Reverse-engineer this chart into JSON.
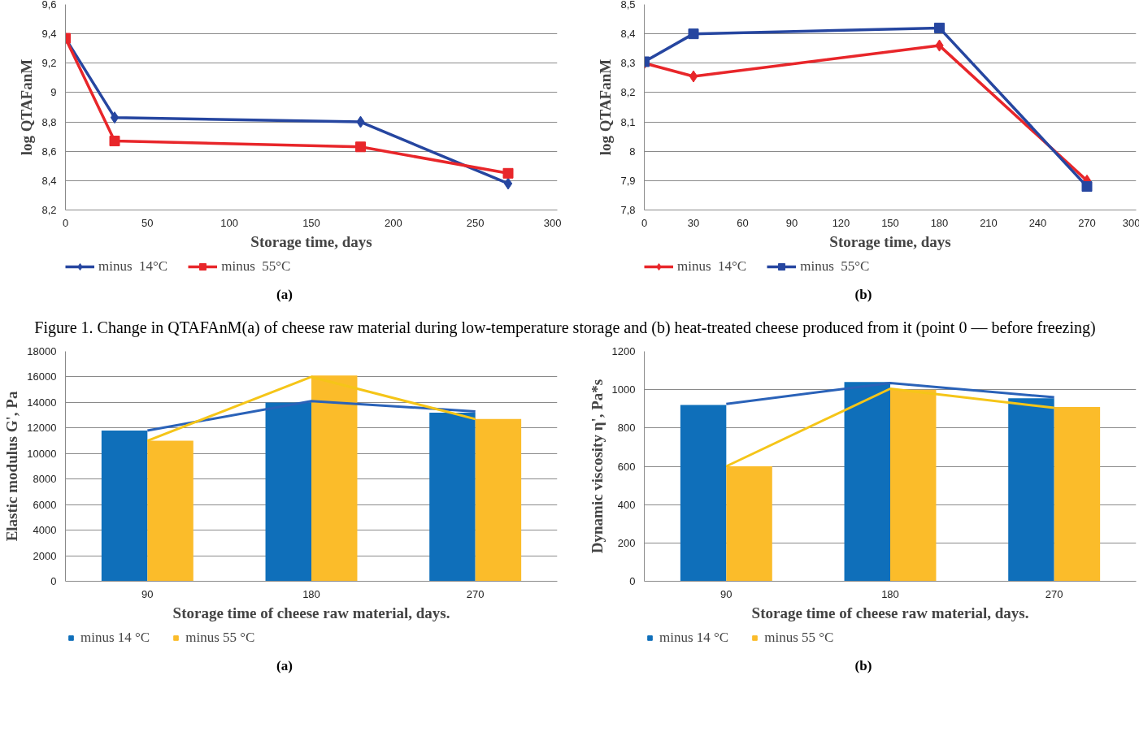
{
  "chart_data": [
    {
      "type": "line",
      "ylabel": "log QTAFanM",
      "xlabel": "Storage time, days",
      "x": [
        0,
        30,
        180,
        270
      ],
      "series": [
        {
          "name": "minus  14°C",
          "color": "#2646a0",
          "marker": "diamond",
          "values": [
            9.37,
            8.83,
            8.8,
            8.38
          ]
        },
        {
          "name": "minus  55°C",
          "color": "#e8262a",
          "marker": "square",
          "values": [
            9.37,
            8.67,
            8.63,
            8.45
          ]
        }
      ],
      "xlim": [
        0,
        300
      ],
      "xticks": [
        0,
        50,
        100,
        150,
        200,
        250,
        300
      ],
      "ylim": [
        8.2,
        9.6
      ],
      "yticks": [
        {
          "value": 8.2,
          "label": "8,2"
        },
        {
          "value": 8.4,
          "label": "8,4"
        },
        {
          "value": 8.6,
          "label": "8,6"
        },
        {
          "value": 8.8,
          "label": "8,8"
        },
        9,
        {
          "value": 9.2,
          "label": "9,2"
        },
        {
          "value": 9.4,
          "label": "9,4"
        },
        {
          "value": 9.6,
          "label": "9,6"
        }
      ],
      "grid": "y",
      "legend": "bottom",
      "line_style": "solid",
      "annotations": [
        "(a)",
        "Figure 1. Change in QTAFAnM(a) of cheese raw material during low-temperature storage and (b) heat-treated cheese produced from it (point 0 — before freezing)"
      ]
    },
    {
      "type": "line",
      "ylabel": "log QTAFanM",
      "xlabel": "Storage time, days",
      "x": [
        0,
        30,
        180,
        270
      ],
      "series": [
        {
          "name": "minus  14°C",
          "color": "#e8262a",
          "marker": "diamond",
          "values": [
            8.3,
            8.255,
            8.36,
            7.9
          ]
        },
        {
          "name": "minus  55°C",
          "color": "#2646a0",
          "marker": "square",
          "values": [
            8.305,
            8.4,
            8.42,
            7.88
          ]
        }
      ],
      "xlim": [
        0,
        300
      ],
      "xticks": [
        0,
        30,
        60,
        90,
        120,
        150,
        180,
        210,
        240,
        270,
        300
      ],
      "ylim": [
        7.8,
        8.5
      ],
      "yticks": [
        {
          "value": 7.8,
          "label": "7,8"
        },
        {
          "value": 7.9,
          "label": "7,9"
        },
        8,
        {
          "value": 8.1,
          "label": "8,1"
        },
        {
          "value": 8.2,
          "label": "8,2"
        },
        {
          "value": 8.3,
          "label": "8,3"
        },
        {
          "value": 8.4,
          "label": "8,4"
        },
        {
          "value": 8.5,
          "label": "8,5"
        }
      ],
      "grid": "y",
      "legend": "bottom",
      "line_style": "solid",
      "annotations": [
        "(b)"
      ]
    },
    {
      "type": "bar",
      "ylabel": "Elastic modulus G', Pa",
      "xlabel": "Storage time of cheese raw material, days.",
      "categories": [
        "90",
        "180",
        "270"
      ],
      "series": [
        {
          "name": "minus 14 °C",
          "color": "#0f6fba",
          "values": [
            11800,
            14000,
            13200
          ]
        },
        {
          "name": "minus 55 °C",
          "color": "#fbbc2a",
          "values": [
            11000,
            16100,
            12700
          ]
        },
        {
          "type": "line",
          "color": "#2a62b8",
          "values": [
            11800,
            14100,
            13300
          ]
        },
        {
          "type": "line",
          "color": "#f5c518",
          "values": [
            11000,
            16000,
            12700
          ]
        }
      ],
      "ylim": [
        0,
        18000
      ],
      "yticks": [
        0,
        2000,
        4000,
        6000,
        8000,
        10000,
        12000,
        14000,
        16000,
        18000
      ],
      "grid": "y",
      "legend": "bottom",
      "annotations": [
        "(a)"
      ]
    },
    {
      "type": "bar",
      "ylabel": "Dynamic viscosity η', Pa*s",
      "xlabel": "Storage time of cheese raw material, days.",
      "categories": [
        "90",
        "180",
        "270"
      ],
      "series": [
        {
          "name": "minus 14 °C",
          "color": "#0f6fba",
          "values": [
            920,
            1040,
            955
          ]
        },
        {
          "name": "minus 55 °C",
          "color": "#fbbc2a",
          "values": [
            600,
            1000,
            910
          ]
        },
        {
          "type": "line",
          "color": "#2a62b8",
          "values": [
            925,
            1035,
            960
          ]
        },
        {
          "type": "line",
          "color": "#f5c518",
          "values": [
            600,
            1005,
            905
          ]
        }
      ],
      "ylim": [
        0,
        1200
      ],
      "yticks": [
        0,
        200,
        400,
        600,
        800,
        1000,
        1200
      ],
      "grid": "y",
      "legend": "bottom",
      "annotations": [
        "(b)"
      ]
    }
  ]
}
